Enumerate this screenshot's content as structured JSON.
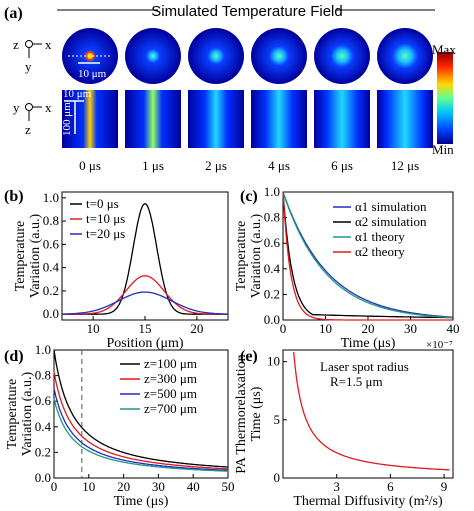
{
  "panel_a": {
    "label": "(a)",
    "title": "Simulated Temperature Field",
    "colorbar": {
      "max": "Max",
      "min": "Min"
    },
    "axes_top": {
      "z": "z",
      "x": "x",
      "y": "y"
    },
    "axes_bottom": {
      "y": "y",
      "x": "x",
      "z": "z"
    },
    "scale_top": "10 μm",
    "scale_bottom_x": "10 μm",
    "scale_bottom_z": "100 μm",
    "times": [
      "0 μs",
      "1 μs",
      "2 μs",
      "4 μs",
      "6 μs",
      "12 μs"
    ],
    "spot_intensity": [
      0.0,
      0.55,
      0.7,
      0.8,
      0.85,
      0.9
    ],
    "line_intensity": [
      0.95,
      0.8,
      0.72,
      0.6,
      0.5,
      0.4
    ]
  },
  "panel_b": {
    "label": "(b)"
  },
  "panel_c": {
    "label": "(c)"
  },
  "panel_d": {
    "label": "(d)"
  },
  "panel_e": {
    "label": "(e)",
    "annotation_line1": "Laser spot radius",
    "annotation_line2": "R=1.5 μm"
  },
  "colors": {
    "black": "#000000",
    "red": "#e41a1c",
    "blue": "#1f2fbf",
    "teal": "#1a9a8a",
    "dashed": "#555555"
  },
  "chart_data": [
    {
      "id": "b",
      "type": "line",
      "xlabel": "Position (μm)",
      "ylabel": "Temperature Variation (a.u.)",
      "xlim": [
        7,
        23
      ],
      "ylim": [
        -0.05,
        1.05
      ],
      "xticks": [
        10,
        15,
        20
      ],
      "yticks": [
        0.0,
        0.2,
        0.4,
        0.6,
        0.8,
        1.0
      ],
      "legend": "top-left",
      "series": [
        {
          "name": "t=0 μs",
          "color": "#000000",
          "peak": 0.95,
          "width": 1.6
        },
        {
          "name": "t=10 μs",
          "color": "#e41a1c",
          "peak": 0.33,
          "width": 2.6
        },
        {
          "name": "t=20 μs",
          "color": "#1f2fbf",
          "peak": 0.19,
          "width": 3.6
        }
      ],
      "center": 15
    },
    {
      "id": "c",
      "type": "line",
      "xlabel": "Time (μs)",
      "ylabel": "Temperature Variation (a.u.)",
      "xlim": [
        0,
        40
      ],
      "ylim": [
        0,
        1.0
      ],
      "xticks": [
        0,
        10,
        20,
        30,
        40
      ],
      "yticks": [
        0.0,
        0.2,
        0.4,
        0.6,
        0.8,
        1.0
      ],
      "legend": "top-right",
      "series": [
        {
          "name": "α1 simulation",
          "color": "#1f2fbf",
          "tau": 10.5
        },
        {
          "name": "α2 simulation",
          "color": "#000000",
          "tau": 2.2,
          "tail": 0.05
        },
        {
          "name": "α1 theory",
          "color": "#1a9a8a",
          "tau": 10.0
        },
        {
          "name": "α2 theory",
          "color": "#e41a1c",
          "tau": 1.8
        }
      ]
    },
    {
      "id": "d",
      "type": "line",
      "xlabel": "Time (μs)",
      "ylabel": "Temperature Variation (a.u.)",
      "xlim": [
        0,
        50
      ],
      "ylim": [
        0,
        1.0
      ],
      "xticks": [
        0,
        10,
        20,
        30,
        40,
        50
      ],
      "yticks": [
        0.0,
        0.2,
        0.4,
        0.6,
        0.8,
        1.0
      ],
      "legend": "top-right",
      "vline_x": 8,
      "series": [
        {
          "name": "z=100 μm",
          "color": "#000000",
          "y0": 1.0
        },
        {
          "name": "z=300 μm",
          "color": "#e41a1c",
          "y0": 0.83
        },
        {
          "name": "z=500 μm",
          "color": "#1f2fbf",
          "y0": 0.7
        },
        {
          "name": "z=700 μm",
          "color": "#1a9a8a",
          "y0": 0.62
        }
      ]
    },
    {
      "id": "e",
      "type": "line",
      "xlabel": "Thermal Diffusivity (m²/s)",
      "ylabel": "PA Thermorelaxation Time (μs)",
      "x_multiplier": "×10⁻⁷",
      "xlim": [
        0,
        9.5
      ],
      "ylim": [
        0,
        11
      ],
      "xticks": [
        3,
        6,
        9
      ],
      "yticks": [
        0,
        5,
        10
      ],
      "series": [
        {
          "name": "",
          "color": "#e41a1c",
          "k": 6.5,
          "x_start": 0.6
        }
      ]
    }
  ]
}
